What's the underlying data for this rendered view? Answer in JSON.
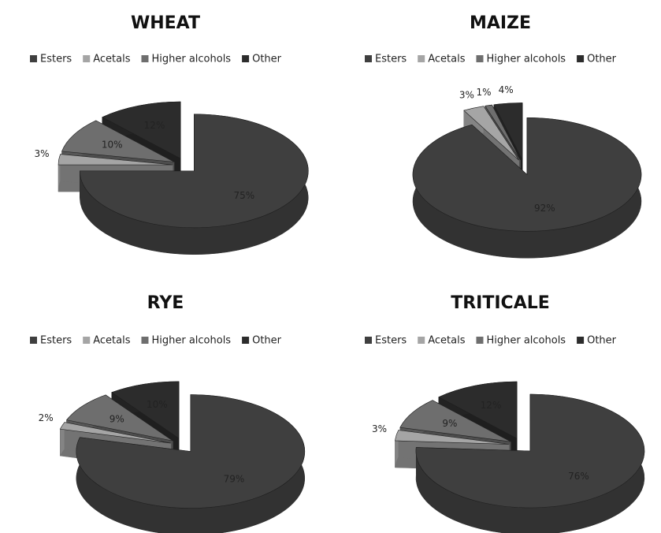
{
  "chart_data": [
    {
      "type": "pie",
      "title": "WHEAT",
      "categories": [
        "Esters",
        "Acetals",
        "Higher alcohols",
        "Other"
      ],
      "values": [
        75,
        3,
        10,
        12
      ],
      "value_labels": [
        "75%",
        "3%",
        "10%",
        "12%"
      ],
      "colors": [
        "#3f3f3f",
        "#a5a5a5",
        "#6e6e6e",
        "#2c2c2c"
      ]
    },
    {
      "type": "pie",
      "title": "MAIZE",
      "categories": [
        "Esters",
        "Acetals",
        "Higher alcohols",
        "Other"
      ],
      "values": [
        92,
        3,
        1,
        4
      ],
      "value_labels": [
        "92%",
        "3%",
        "1%",
        "4%"
      ],
      "colors": [
        "#3f3f3f",
        "#a5a5a5",
        "#6e6e6e",
        "#2c2c2c"
      ]
    },
    {
      "type": "pie",
      "title": "RYE",
      "categories": [
        "Esters",
        "Acetals",
        "Higher alcohols",
        "Other"
      ],
      "values": [
        79,
        2,
        9,
        10
      ],
      "value_labels": [
        "79%",
        "2%",
        "9%",
        "10%"
      ],
      "colors": [
        "#3f3f3f",
        "#a5a5a5",
        "#6e6e6e",
        "#2c2c2c"
      ]
    },
    {
      "type": "pie",
      "title": "TRITICALE",
      "categories": [
        "Esters",
        "Acetals",
        "Higher alcohols",
        "Other"
      ],
      "values": [
        76,
        3,
        9,
        12
      ],
      "value_labels": [
        "76%",
        "3%",
        "9%",
        "12%"
      ],
      "colors": [
        "#3f3f3f",
        "#a5a5a5",
        "#6e6e6e",
        "#2c2c2c"
      ]
    }
  ]
}
